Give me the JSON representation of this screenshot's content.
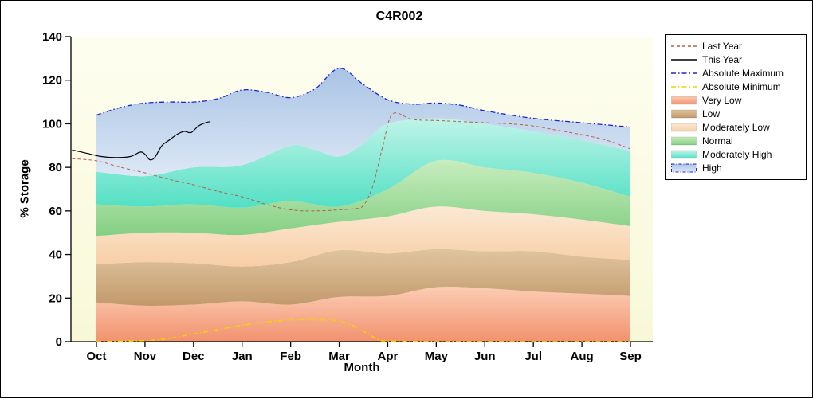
{
  "frame": {
    "border_color": "#000000",
    "background": "#FFFFFF"
  },
  "chart_data": {
    "type": "area",
    "title": "C4R002",
    "xlabel": "Month",
    "ylabel": "% Storage",
    "ylim": [
      0,
      140
    ],
    "yticks": [
      0,
      20,
      40,
      60,
      80,
      100,
      120,
      140
    ],
    "x_categories": [
      "Oct",
      "Nov",
      "Dec",
      "Jan",
      "Feb",
      "Mar",
      "Apr",
      "May",
      "Jun",
      "Jul",
      "Aug",
      "Sep"
    ],
    "grid": "off",
    "legend_position": "right",
    "plot_bg_top": "#FEFEF0",
    "plot_bg_bottom": "#F8F8D8",
    "boundaries": {
      "zero": {
        "x": [
          0,
          11
        ],
        "y": [
          0,
          0
        ]
      },
      "very_low_top": {
        "x": [
          0,
          1,
          2,
          3,
          4,
          5,
          6,
          7,
          8,
          9,
          10,
          11
        ],
        "y": [
          18,
          16.5,
          17,
          18.5,
          17,
          20.5,
          21,
          25,
          24.5,
          23,
          22,
          21
        ]
      },
      "low_top": {
        "x": [
          0,
          1,
          2,
          3,
          4,
          5,
          6,
          7,
          8,
          9,
          10,
          11
        ],
        "y": [
          35.5,
          36.5,
          36,
          34.5,
          36.5,
          42,
          40.5,
          42.5,
          41.5,
          41.5,
          39,
          37.5
        ]
      },
      "mod_low_top": {
        "x": [
          0,
          1,
          2,
          3,
          4,
          5,
          6,
          7,
          8,
          9,
          10,
          11
        ],
        "y": [
          48.5,
          50,
          50,
          49,
          52,
          55,
          57.5,
          62,
          60,
          58.5,
          56,
          53
        ]
      },
      "normal_top": {
        "x": [
          0,
          1,
          2,
          3,
          4,
          5,
          6,
          7,
          8,
          9,
          10,
          11
        ],
        "y": [
          63,
          62,
          63,
          61.5,
          64.5,
          62,
          70,
          83,
          80,
          77.5,
          73,
          66.5
        ]
      },
      "mod_high_top": {
        "x": [
          0,
          1,
          2,
          3,
          4,
          4.5,
          5,
          5.5,
          6,
          7,
          8,
          9,
          10,
          11
        ],
        "y": [
          78,
          76,
          80,
          81,
          90,
          88,
          85,
          91,
          100,
          102.5,
          100,
          96.5,
          92.5,
          87.5
        ]
      },
      "abs_max": {
        "x": [
          0,
          0.5,
          1,
          1.5,
          2,
          2.5,
          3,
          3.5,
          4,
          4.5,
          5,
          5.5,
          6,
          6.5,
          7,
          7.5,
          8,
          9,
          10,
          11
        ],
        "y": [
          104,
          107.5,
          109.5,
          110,
          110,
          111.5,
          115.5,
          114.5,
          112,
          116,
          125.5,
          118,
          111,
          109,
          109.5,
          108.5,
          106,
          102.5,
          100.5,
          98.5
        ]
      },
      "abs_min": {
        "x": [
          0,
          1,
          1.5,
          2,
          2.5,
          3,
          3.5,
          4,
          4.5,
          5,
          5.4,
          5.8,
          6,
          7,
          8,
          9,
          10,
          11
        ],
        "y": [
          0,
          0.5,
          1.5,
          3.5,
          5.5,
          7.5,
          9,
          10,
          10,
          9.5,
          6,
          1,
          0.3,
          0,
          0,
          0,
          0,
          0
        ]
      },
      "last_year": {
        "x": [
          -0.5,
          0,
          0.5,
          1,
          1.5,
          2,
          2.5,
          3,
          3.5,
          4,
          4.5,
          5,
          5.3,
          5.5,
          5.7,
          5.9,
          6.1,
          6.5,
          7,
          7.5,
          8,
          8.5,
          9,
          9.5,
          10,
          10.5,
          11
        ],
        "y": [
          84,
          83,
          80,
          77.5,
          74.5,
          72,
          69,
          66.5,
          63,
          60.5,
          60,
          60.5,
          61,
          62.5,
          72,
          90,
          104.5,
          102,
          101.5,
          101,
          100.5,
          100,
          99,
          97,
          95,
          92.5,
          88.5
        ]
      },
      "this_year": {
        "x": [
          -0.5,
          -0.2,
          0.1,
          0.4,
          0.7,
          0.9,
          1,
          1.1,
          1.2,
          1.35,
          1.5,
          1.65,
          1.8,
          1.95,
          2.1,
          2.25,
          2.35
        ],
        "y": [
          88,
          86.5,
          85,
          84.5,
          85,
          87,
          86,
          83.5,
          84.5,
          90,
          92.5,
          95,
          96.5,
          96,
          99,
          100.5,
          101
        ]
      }
    },
    "bands": [
      {
        "name": "Very Low",
        "bottom": "zero",
        "top": "very_low_top",
        "color": "#F2926E",
        "color2": "#FBCDB5"
      },
      {
        "name": "Low",
        "bottom": "very_low_top",
        "top": "low_top",
        "color": "#C2996B",
        "color2": "#E0C5A0"
      },
      {
        "name": "Moderately Low",
        "bottom": "low_top",
        "top": "mod_low_top",
        "color": "#F7CEA5",
        "color2": "#FBE9D5"
      },
      {
        "name": "Normal",
        "bottom": "mod_low_top",
        "top": "normal_top",
        "color": "#84CF84",
        "color2": "#C8EDBE"
      },
      {
        "name": "Moderately High",
        "bottom": "normal_top",
        "top": "mod_high_top",
        "color": "#52E0C4",
        "color2": "#C0F4E8"
      },
      {
        "name": "High",
        "bottom": "mod_high_top",
        "top": "abs_max",
        "color": "#DCE8F6",
        "color2": "#A9C3E4"
      }
    ],
    "lines": [
      {
        "name": "Last Year",
        "boundary": "last_year",
        "color": "#B0614A",
        "width": 1,
        "dash": "4 3"
      },
      {
        "name": "Absolute Maximum",
        "boundary": "abs_max",
        "color": "#2323CE",
        "width": 1.3,
        "dash": "6 3 1.5 3"
      },
      {
        "name": "Absolute Minimum",
        "boundary": "abs_min",
        "color": "#EFD402",
        "width": 1.6,
        "dash": "6 3 1.5 3"
      },
      {
        "name": "This Year",
        "boundary": "this_year",
        "color": "#000000",
        "width": 1.2,
        "dash": ""
      }
    ],
    "legend": [
      {
        "label": "Last Year",
        "type": "line",
        "color": "#B0614A",
        "dash": "4 3"
      },
      {
        "label": "This Year",
        "type": "line",
        "color": "#000000",
        "dash": ""
      },
      {
        "label": "Absolute Maximum",
        "type": "line",
        "color": "#2323CE",
        "dash": "6 3 1.5 3"
      },
      {
        "label": "Absolute Minimum",
        "type": "line",
        "color": "#EFD402",
        "dash": "6 3 1.5 3"
      },
      {
        "label": "Very Low",
        "type": "fill",
        "color": "#F2926E",
        "color2": "#FBCDB5"
      },
      {
        "label": "Low",
        "type": "fill",
        "color": "#C2996B",
        "color2": "#E0C5A0"
      },
      {
        "label": "Moderately Low",
        "type": "fill",
        "color": "#F7CEA5",
        "color2": "#FBE9D5"
      },
      {
        "label": "Normal",
        "type": "fill",
        "color": "#84CF84",
        "color2": "#C8EDBE"
      },
      {
        "label": "Moderately High",
        "type": "fill",
        "color": "#52E0C4",
        "color2": "#C0F4E8"
      },
      {
        "label": "High",
        "type": "fill",
        "color": "#DCE8F6",
        "color2": "#A9C3E4",
        "border": "dashdot"
      }
    ]
  }
}
